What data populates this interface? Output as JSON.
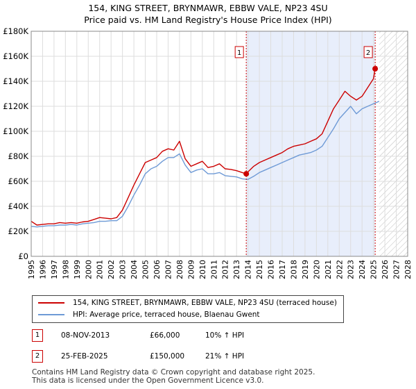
{
  "header": {
    "title_line1": "154, KING STREET, BRYNMAWR, EBBW VALE, NP23 4SU",
    "title_line2": "Price paid vs. HM Land Registry's House Price Index (HPI)"
  },
  "chart_data": {
    "type": "line",
    "title": "154, KING STREET, BRYNMAWR, EBBW VALE, NP23 4SU",
    "subtitle": "Price paid vs. HM Land Registry's House Price Index (HPI)",
    "xlabel": "",
    "ylabel": "",
    "xlim": [
      1995,
      2028
    ],
    "ylim": [
      0,
      180000
    ],
    "grid": true,
    "y_ticks": [
      0,
      20000,
      40000,
      60000,
      80000,
      100000,
      120000,
      140000,
      160000,
      180000
    ],
    "y_tick_labels": [
      "£0",
      "£20K",
      "£40K",
      "£60K",
      "£80K",
      "£100K",
      "£120K",
      "£140K",
      "£160K",
      "£180K"
    ],
    "x_ticks": [
      1995,
      1996,
      1997,
      1998,
      1999,
      2000,
      2001,
      2002,
      2003,
      2004,
      2005,
      2006,
      2007,
      2008,
      2009,
      2010,
      2011,
      2012,
      2013,
      2014,
      2015,
      2016,
      2017,
      2018,
      2019,
      2020,
      2021,
      2022,
      2023,
      2024,
      2025,
      2026,
      2027,
      2028
    ],
    "x_tick_labels": [
      "1995",
      "1996",
      "1997",
      "1998",
      "1999",
      "2000",
      "2001",
      "2002",
      "2003",
      "2004",
      "2005",
      "2006",
      "2007",
      "2008",
      "2009",
      "2010",
      "2011",
      "2012",
      "2013",
      "2014",
      "2015",
      "2016",
      "2017",
      "2018",
      "2019",
      "2020",
      "2021",
      "2022",
      "2023",
      "2024",
      "2025",
      "2026",
      "2027",
      "2028"
    ],
    "shaded_region": {
      "from": 2013.85,
      "to": 2025.15,
      "color": "#e8eefb"
    },
    "future_hatch": {
      "from": 2025.5,
      "to": 2028
    },
    "series": [
      {
        "name": "154, KING STREET, BRYNMAWR, EBBW VALE, NP23 4SU (terraced house)",
        "color": "#cc0000",
        "x": [
          1995,
          1995.5,
          1996,
          1996.5,
          1997,
          1997.5,
          1998,
          1998.5,
          1999,
          1999.5,
          2000,
          2000.5,
          2001,
          2001.5,
          2002,
          2002.5,
          2003,
          2003.5,
          2004,
          2004.5,
          2005,
          2005.5,
          2006,
          2006.5,
          2007,
          2007.5,
          2008,
          2008.5,
          2009,
          2009.5,
          2010,
          2010.5,
          2011,
          2011.5,
          2012,
          2012.5,
          2013,
          2013.5,
          2013.85,
          2014,
          2014.5,
          2015,
          2015.5,
          2016,
          2016.5,
          2017,
          2017.5,
          2018,
          2018.5,
          2019,
          2019.5,
          2020,
          2020.5,
          2021,
          2021.5,
          2022,
          2022.5,
          2023,
          2023.5,
          2024,
          2024.5,
          2025,
          2025.15,
          2025.3
        ],
        "values": [
          28000,
          25000,
          25500,
          26000,
          26000,
          27000,
          26500,
          27000,
          26500,
          27500,
          28000,
          29500,
          31000,
          30500,
          30000,
          31000,
          37000,
          47000,
          57000,
          66000,
          75000,
          77000,
          79000,
          84000,
          86000,
          85000,
          92000,
          78000,
          72000,
          74000,
          76000,
          71000,
          72000,
          74000,
          70000,
          69500,
          68500,
          67000,
          66000,
          67500,
          72000,
          75000,
          77000,
          79000,
          81000,
          83000,
          86000,
          88000,
          89000,
          90000,
          92000,
          94000,
          98000,
          108000,
          118000,
          125000,
          132000,
          128000,
          125000,
          128000,
          135000,
          142000,
          150000,
          152000
        ]
      },
      {
        "name": "HPI: Average price, terraced house, Blaenau Gwent",
        "color": "#6e9ad6",
        "x": [
          1995,
          1995.5,
          1996,
          1996.5,
          1997,
          1997.5,
          1998,
          1998.5,
          1999,
          1999.5,
          2000,
          2000.5,
          2001,
          2001.5,
          2002,
          2002.5,
          2003,
          2003.5,
          2004,
          2004.5,
          2005,
          2005.5,
          2006,
          2006.5,
          2007,
          2007.5,
          2008,
          2008.5,
          2009,
          2009.5,
          2010,
          2010.5,
          2011,
          2011.5,
          2012,
          2012.5,
          2013,
          2013.5,
          2014,
          2014.5,
          2015,
          2015.5,
          2016,
          2016.5,
          2017,
          2017.5,
          2018,
          2018.5,
          2019,
          2019.5,
          2020,
          2020.5,
          2021,
          2021.5,
          2022,
          2022.5,
          2023,
          2023.5,
          2024,
          2024.5,
          2025,
          2025.5
        ],
        "values": [
          24000,
          23500,
          24000,
          24500,
          24500,
          25000,
          25000,
          25500,
          25000,
          26000,
          26500,
          27000,
          28000,
          28000,
          28500,
          28500,
          32000,
          40000,
          49000,
          57000,
          66000,
          70000,
          72000,
          76000,
          79000,
          79000,
          82000,
          73000,
          67000,
          69000,
          70000,
          66000,
          66000,
          67000,
          64500,
          64000,
          63500,
          62000,
          61500,
          64000,
          67000,
          69000,
          71000,
          73000,
          75000,
          77000,
          79000,
          81000,
          82000,
          83000,
          85000,
          88000,
          95000,
          102000,
          110000,
          115000,
          120000,
          114000,
          118000,
          120000,
          122000,
          124000
        ]
      }
    ],
    "markers": [
      {
        "label": "1",
        "x": 2013.85,
        "y": 66000
      },
      {
        "label": "2",
        "x": 2025.15,
        "y": 150000
      }
    ],
    "legend_position": "bottom"
  },
  "legend": {
    "items": [
      {
        "label": "154, KING STREET, BRYNMAWR, EBBW VALE, NP23 4SU (terraced house)",
        "color": "#cc0000"
      },
      {
        "label": "HPI: Average price, terraced house, Blaenau Gwent",
        "color": "#6e9ad6"
      }
    ]
  },
  "sales": [
    {
      "badge": "1",
      "date": "08-NOV-2013",
      "price": "£66,000",
      "hpi": "10% ↑ HPI"
    },
    {
      "badge": "2",
      "date": "25-FEB-2025",
      "price": "£150,000",
      "hpi": "21% ↑ HPI"
    }
  ],
  "footer": {
    "line1": "Contains HM Land Registry data © Crown copyright and database right 2025.",
    "line2": "This data is licensed under the Open Government Licence v3.0."
  }
}
